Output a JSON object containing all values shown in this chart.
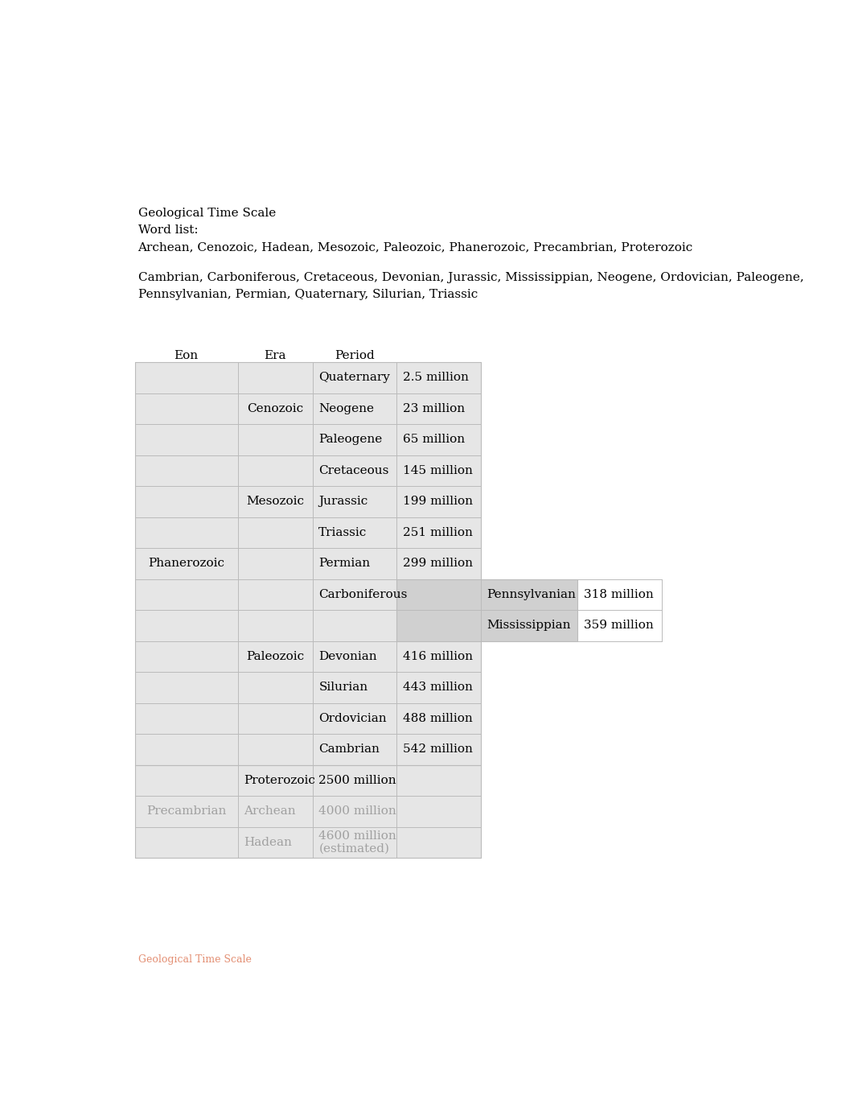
{
  "title": "Geological Time Scale",
  "word_list_label": "Word list:",
  "word_list_line1": "Archean, Cenozoic, Hadean, Mesozoic, Paleozoic, Phanerozoic, Precambrian, Proterozoic",
  "word_list_line2": "Cambrian, Carboniferous, Cretaceous, Devonian, Jurassic, Mississippian, Neogene, Ordovician, Paleogene,",
  "word_list_line3": "Pennsylvanian, Permian, Quaternary, Silurian, Triassic",
  "header_eon": "Eon",
  "header_era": "Era",
  "header_period": "Period",
  "footer_text": "Geological Time Scale",
  "background_color": "#ffffff",
  "text_color": "#000000",
  "table_border_color": "#bbbbbb",
  "table_fill_color": "#e6e6e6",
  "carb_fill_color": "#d0d0d0",
  "phanerozoic_eon": "Phanerozoic",
  "precambrian_eon": "Precambrian",
  "era_spans": [
    [
      "Cenozoic",
      0,
      3
    ],
    [
      "Mesozoic",
      3,
      6
    ],
    [
      "Paleozoic",
      6,
      13
    ]
  ],
  "period_rows": [
    [
      0,
      "Quaternary",
      "2.5 million"
    ],
    [
      1,
      "Neogene",
      "23 million"
    ],
    [
      2,
      "Paleogene",
      "65 million"
    ],
    [
      3,
      "Cretaceous",
      "145 million"
    ],
    [
      4,
      "Jurassic",
      "199 million"
    ],
    [
      5,
      "Triassic",
      "251 million"
    ],
    [
      6,
      "Permian",
      "299 million"
    ],
    [
      7,
      "Carboniferous",
      ""
    ],
    [
      9,
      "Devonian",
      "416 million"
    ],
    [
      10,
      "Silurian",
      "443 million"
    ],
    [
      11,
      "Ordovician",
      "488 million"
    ],
    [
      12,
      "Cambrian",
      "542 million"
    ]
  ],
  "carb_sub": [
    [
      "Pennsylvanian",
      "318 million"
    ],
    [
      "Mississippian",
      "359 million"
    ]
  ],
  "precambrian_rows": [
    [
      "Proterozoic",
      "2500 million",
      1.0
    ],
    [
      "Archean",
      "4000 million",
      0.3
    ],
    [
      "Hadean",
      "4600 million\n(estimated)",
      0.3
    ]
  ],
  "font_size": 11,
  "font_size_small": 9,
  "font_family": "DejaVu Serif"
}
